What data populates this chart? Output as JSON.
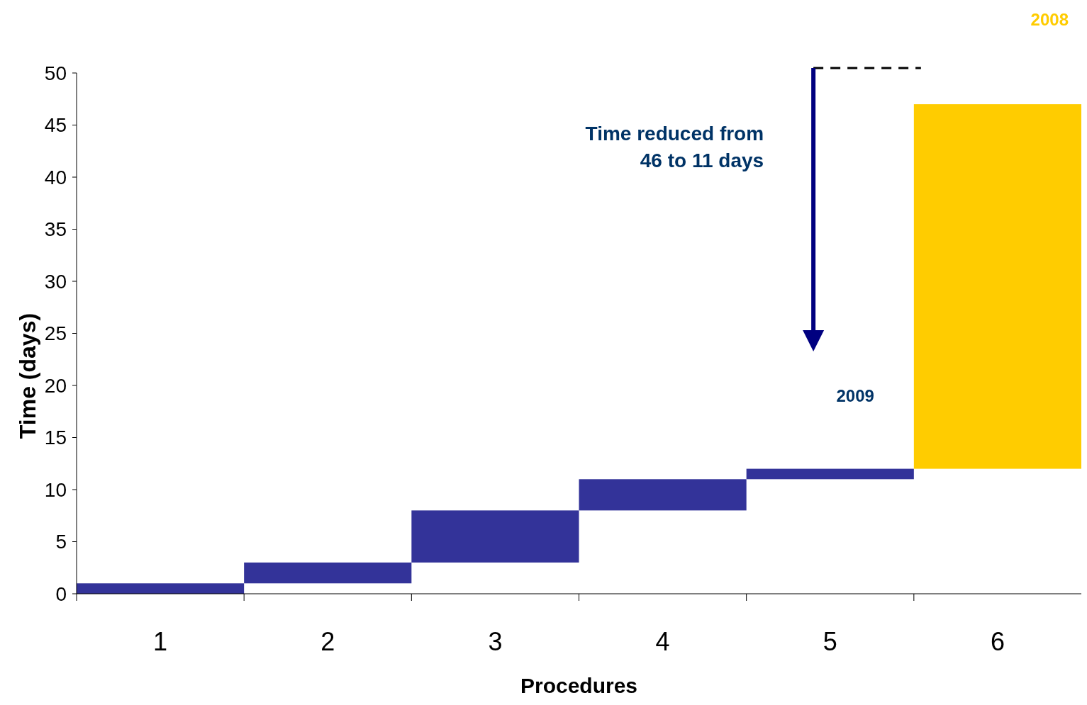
{
  "chart_data": {
    "type": "bar",
    "xlabel": "Procedures",
    "ylabel": "Time (days)",
    "categories": [
      "1",
      "2",
      "3",
      "4",
      "5",
      "6"
    ],
    "base": [
      0,
      1,
      3,
      8,
      11,
      12
    ],
    "values": [
      1,
      2,
      5,
      3,
      1,
      35
    ],
    "colors": [
      "#333399",
      "#333399",
      "#333399",
      "#333399",
      "#333399",
      "#ffcc00"
    ],
    "ylim": [
      0,
      50
    ],
    "yticks": [
      0,
      5,
      10,
      15,
      20,
      25,
      30,
      35,
      40,
      45,
      50
    ],
    "annotations": [
      "Time reduced from 46 to 11 days",
      "2009",
      "2008"
    ]
  }
}
